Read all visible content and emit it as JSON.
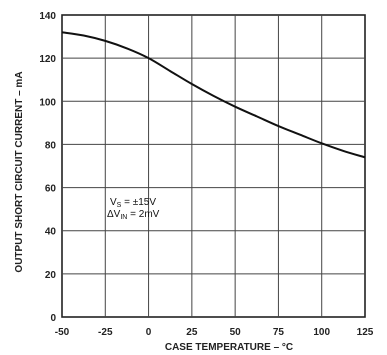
{
  "chart_data": {
    "type": "line",
    "xlabel": "CASE TEMPERATURE – °C",
    "ylabel": "OUTPUT SHORT CIRCUIT CURRENT – mA",
    "xlim": [
      -50,
      125
    ],
    "ylim": [
      0,
      140
    ],
    "x_ticks": [
      "-50",
      "-25",
      "0",
      "25",
      "50",
      "75",
      "100",
      "125"
    ],
    "y_ticks": [
      "0",
      "20",
      "40",
      "60",
      "80",
      "100",
      "120",
      "140"
    ],
    "grid": true,
    "annotation": {
      "line1": "VS = ±15V",
      "line2": "ΔVIN = 2mV"
    },
    "series": [
      {
        "x": [
          -50,
          -37.5,
          -25,
          -12.5,
          0,
          12.5,
          25,
          37.5,
          50,
          62.5,
          75,
          87.5,
          100,
          112.5,
          125
        ],
        "y": [
          132,
          130.5,
          128,
          124.5,
          120,
          114,
          108,
          102.5,
          97.5,
          93,
          88.5,
          84.5,
          80.5,
          77,
          74
        ]
      }
    ]
  }
}
